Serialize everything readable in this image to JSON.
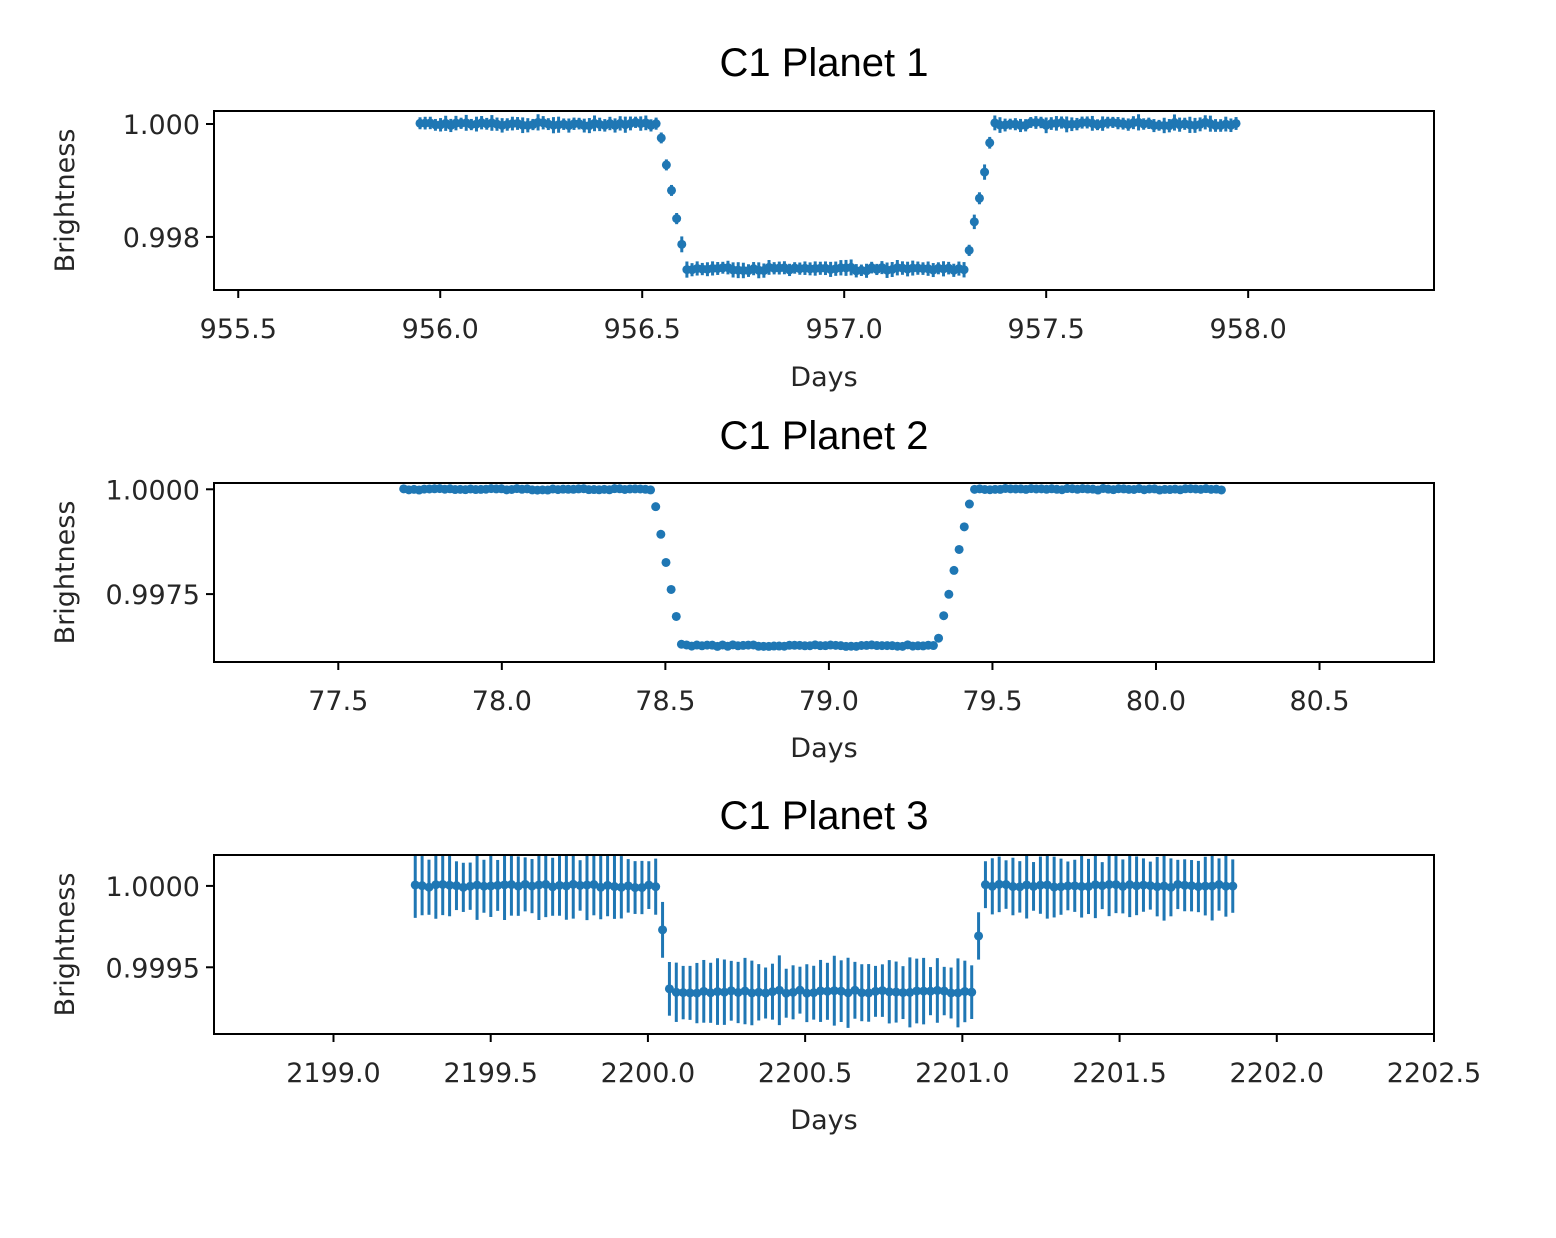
{
  "figure": {
    "background": "#ffffff",
    "series_color": "#1f77b4"
  },
  "chart_data": [
    {
      "type": "scatter",
      "subtype": "errorbar",
      "title": "C1 Planet 1",
      "xlabel": "Days",
      "ylabel": "Brightness",
      "xlim": [
        955.44,
        958.46
      ],
      "ylim": [
        0.99706,
        1.00023
      ],
      "xticks": [
        955.5,
        956.0,
        956.5,
        957.0,
        957.5,
        958.0
      ],
      "xtick_labels": [
        "955.5",
        "956.0",
        "956.5",
        "957.0",
        "957.5",
        "958.0"
      ],
      "yticks": [
        0.998,
        1.0
      ],
      "ytick_labels": [
        "0.998",
        "1.000"
      ],
      "grid": false,
      "series": [
        {
          "x_range": [
            955.95,
            957.97
          ],
          "n_points": 160,
          "baseline": 1.0,
          "depth": 0.00257,
          "transit_start": 956.54,
          "transit_flat_start": 956.61,
          "transit_flat_end": 957.3,
          "transit_end": 957.37,
          "point_noise": 3e-05,
          "error": 0.00012
        }
      ]
    },
    {
      "type": "scatter",
      "subtype": "errorbar",
      "title": "C1 Planet 2",
      "xlabel": "Days",
      "ylabel": "Brightness",
      "xlim": [
        77.12,
        80.85
      ],
      "ylim": [
        0.99588,
        1.00015
      ],
      "xticks": [
        77.5,
        78.0,
        78.5,
        79.0,
        79.5,
        80.0,
        80.5
      ],
      "xtick_labels": [
        "77.5",
        "78.0",
        "78.5",
        "79.0",
        "79.5",
        "80.0",
        "80.5"
      ],
      "yticks": [
        0.9975,
        1.0
      ],
      "ytick_labels": [
        "0.9975",
        "1.0000"
      ],
      "grid": false,
      "series": [
        {
          "x_range": [
            77.7,
            80.2
          ],
          "n_points": 160,
          "baseline": 1.0,
          "depth": 0.00373,
          "transit_start": 78.46,
          "transit_flat_start": 78.55,
          "transit_flat_end": 79.33,
          "transit_end": 79.44,
          "point_noise": 2e-05,
          "error": 5e-05
        }
      ]
    },
    {
      "type": "scatter",
      "subtype": "errorbar",
      "title": "C1 Planet 3",
      "xlabel": "Days",
      "ylabel": "Brightness",
      "xlim": [
        2198.62,
        2202.5
      ],
      "ylim": [
        0.99909,
        1.00019
      ],
      "xticks": [
        2199.0,
        2199.5,
        2200.0,
        2200.5,
        2201.0,
        2201.5,
        2202.0,
        2202.5
      ],
      "xtick_labels": [
        "2199.0",
        "2199.5",
        "2200.0",
        "2200.5",
        "2201.0",
        "2201.5",
        "2202.0",
        "2202.5"
      ],
      "yticks": [
        0.9995,
        1.0
      ],
      "ytick_labels": [
        "0.9995",
        "1.0000"
      ],
      "grid": false,
      "series": [
        {
          "x_range": [
            2199.26,
            2201.86
          ],
          "n_points": 120,
          "baseline": 1.0,
          "depth": 0.00065,
          "transit_start": 2200.03,
          "transit_flat_start": 2200.07,
          "transit_flat_end": 2201.03,
          "transit_end": 2201.07,
          "point_noise": 1e-05,
          "error": 0.00018
        }
      ]
    }
  ]
}
